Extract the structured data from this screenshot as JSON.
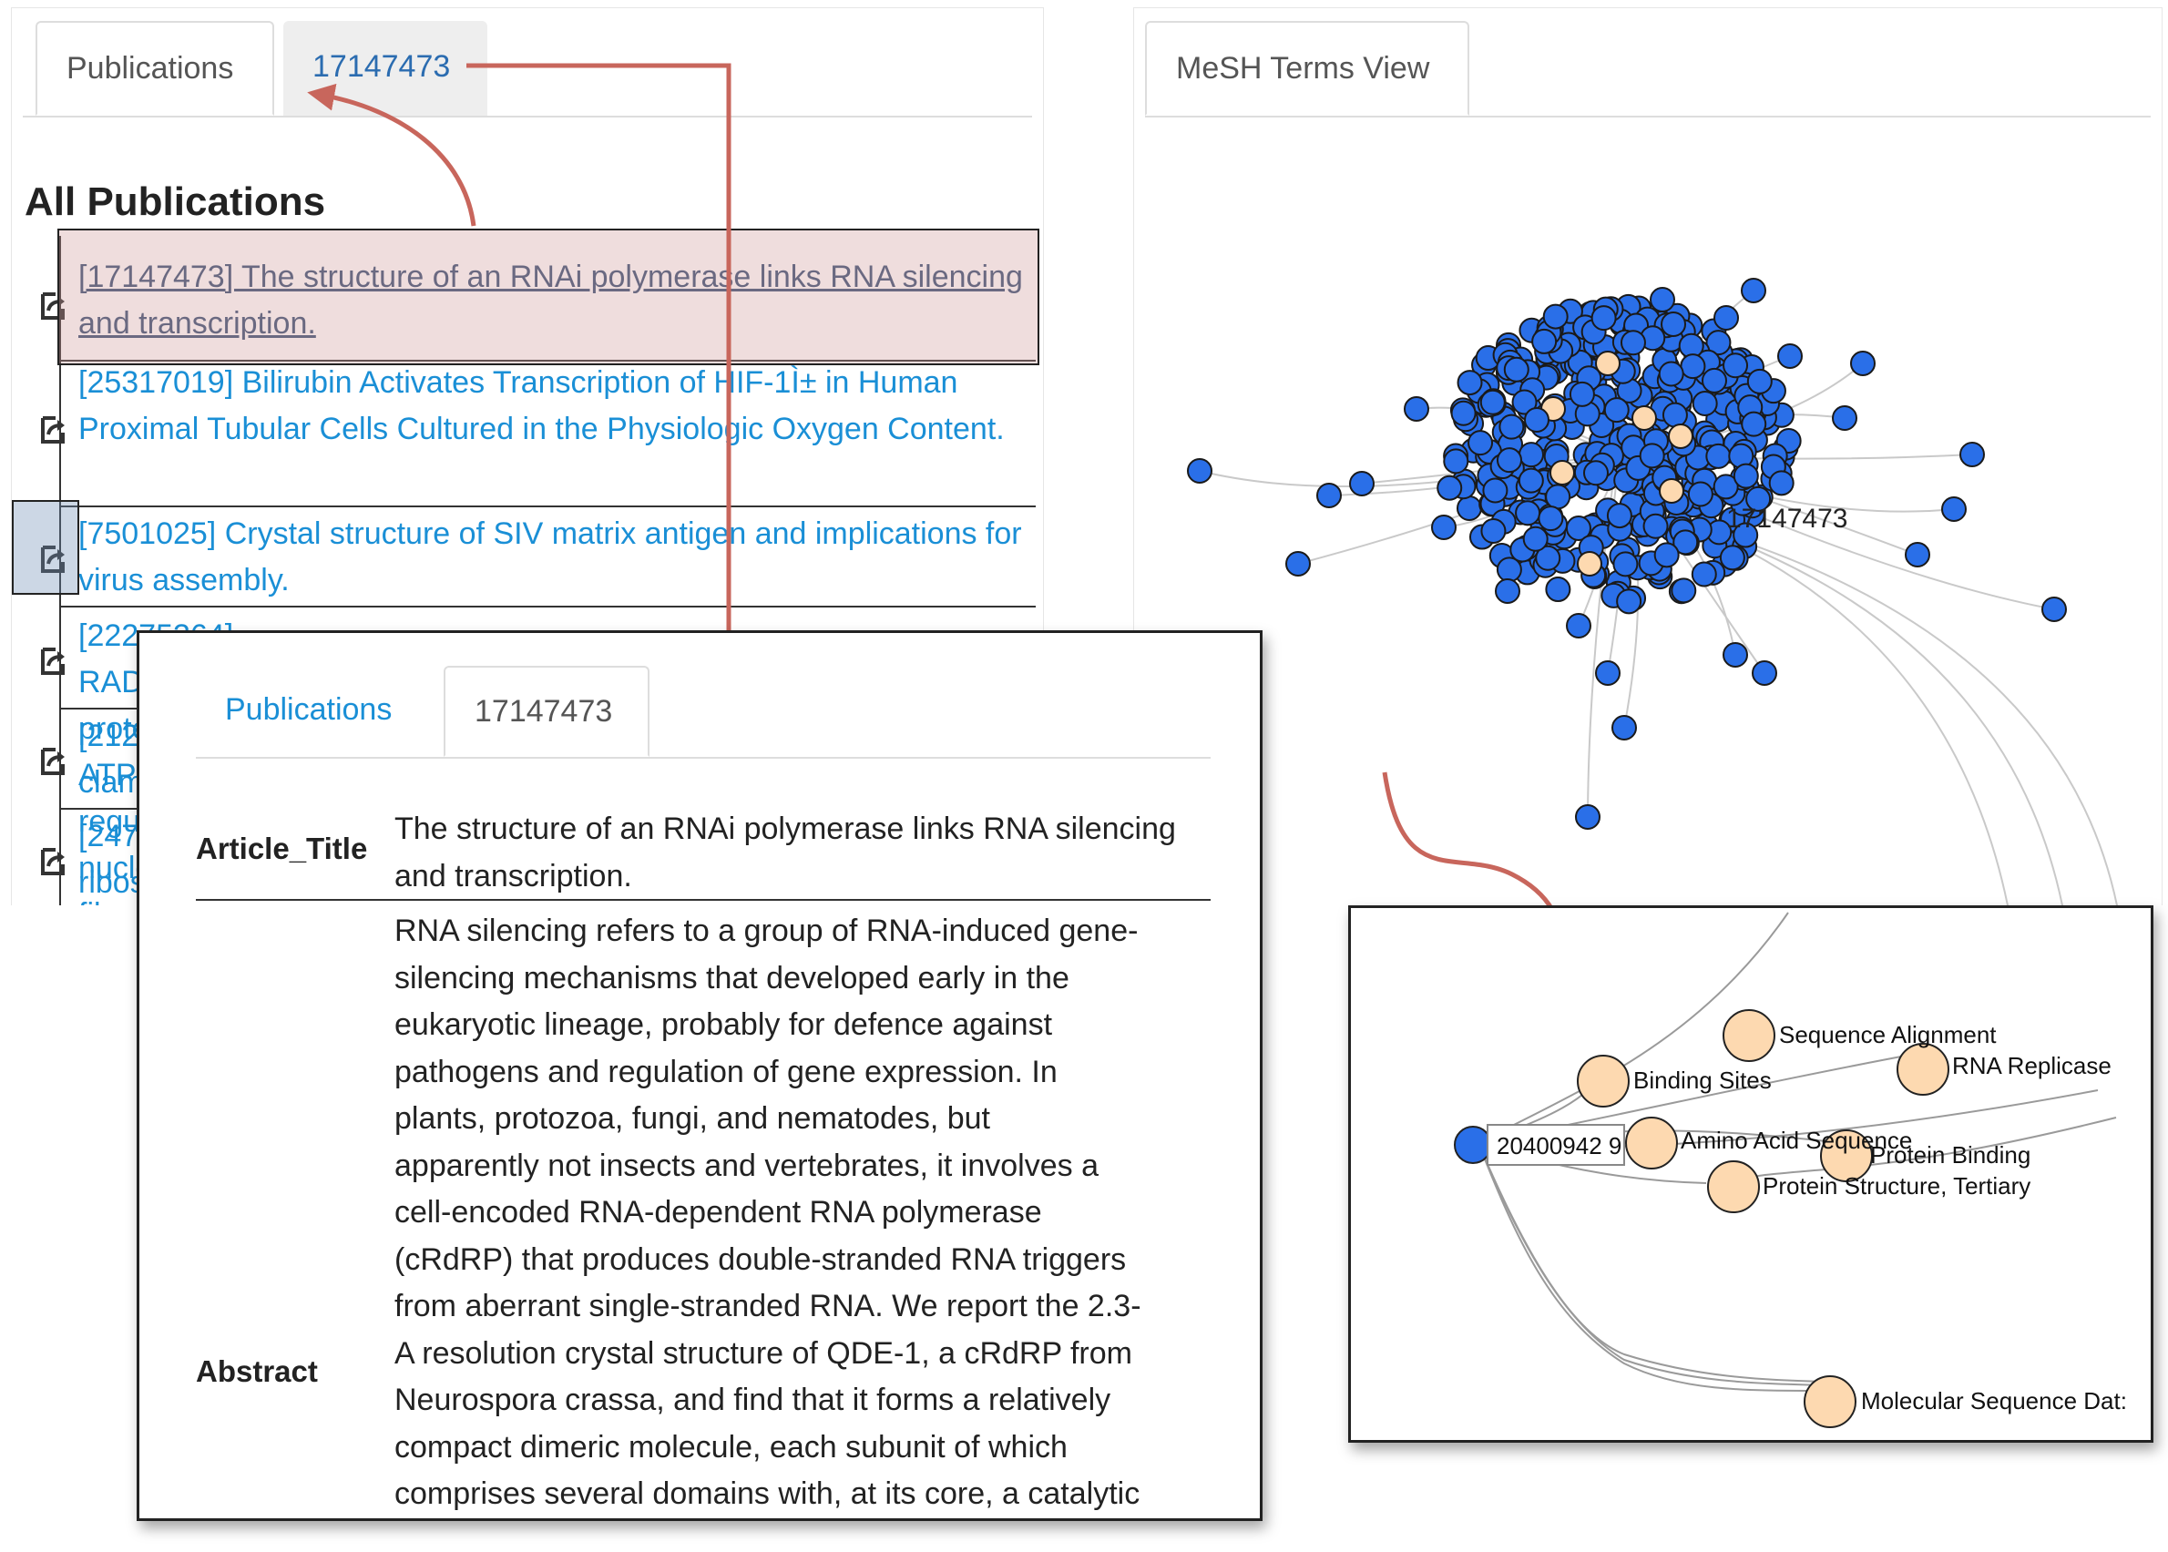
{
  "left_panel": {
    "tabs": [
      {
        "label": "Publications"
      },
      {
        "label": "17147473"
      }
    ],
    "heading": "All Publications",
    "publications": [
      {
        "text": "[17147473] The structure of an RNAi polymerase links RNA silencing and transcription."
      },
      {
        "text": "[25317019] Bilirubin Activates Transcription of HIF-1Ì± in Human Proximal Tubular Cells Cultured in the Physiologic Oxygen Content."
      },
      {
        "text": "[7501025] Crystal structure of SIV matrix antigen and implications for virus assembly."
      },
      {
        "text": "[22275364] RAD51 protein ATP cap regulates nucleoprotein filam"
      },
      {
        "text": "[212"
      },
      {
        "text": "clam"
      },
      {
        "text": "[247"
      },
      {
        "text": "ribos"
      }
    ]
  },
  "right_panel": {
    "tabs": [
      {
        "label": "MeSH Terms View"
      }
    ],
    "graph_node_label": "17147473"
  },
  "detail_popup": {
    "tabs": [
      {
        "label": "Publications"
      },
      {
        "label": "17147473"
      }
    ],
    "article_title_label": "Article_Title",
    "article_title": "The structure of an RNAi polymerase links RNA silencing and transcription.",
    "abstract_label": "Abstract",
    "abstract_lines": [
      "RNA silencing refers to a group of RNA-induced gene-",
      "silencing mechanisms that developed early in the",
      "eukaryotic lineage, probably for defence against",
      "pathogens and regulation of gene expression. In",
      "plants, protozoa, fungi, and nematodes, but",
      "apparently not insects and vertebrates, it involves a",
      "cell-encoded RNA-dependent RNA polymerase",
      "(cRdRP) that produces double-stranded RNA triggers",
      "from aberrant single-stranded RNA. We report the 2.3-",
      "A resolution crystal structure of QDE-1, a cRdRP from",
      "Neurospora crassa, and find that it forms a relatively",
      "compact dimeric molecule, each subunit of which",
      "comprises several domains with, at its core, a catalytic"
    ]
  },
  "zoom_popup": {
    "publication_label": "20400942 9",
    "terms": [
      {
        "label": "Sequence Alignment"
      },
      {
        "label": "Binding Sites"
      },
      {
        "label": "RNA Replicase"
      },
      {
        "label": "Amino Acid Sequence"
      },
      {
        "label": "Protein Binding"
      },
      {
        "label": "Protein Structure, Tertiary"
      },
      {
        "label": "Molecular Sequence Dat:"
      }
    ]
  },
  "colors": {
    "publication_node": "#2a6fe8",
    "mesh_node": "#fdd9b0",
    "arrow": "#c8665c",
    "link": "#1a8fd6"
  }
}
